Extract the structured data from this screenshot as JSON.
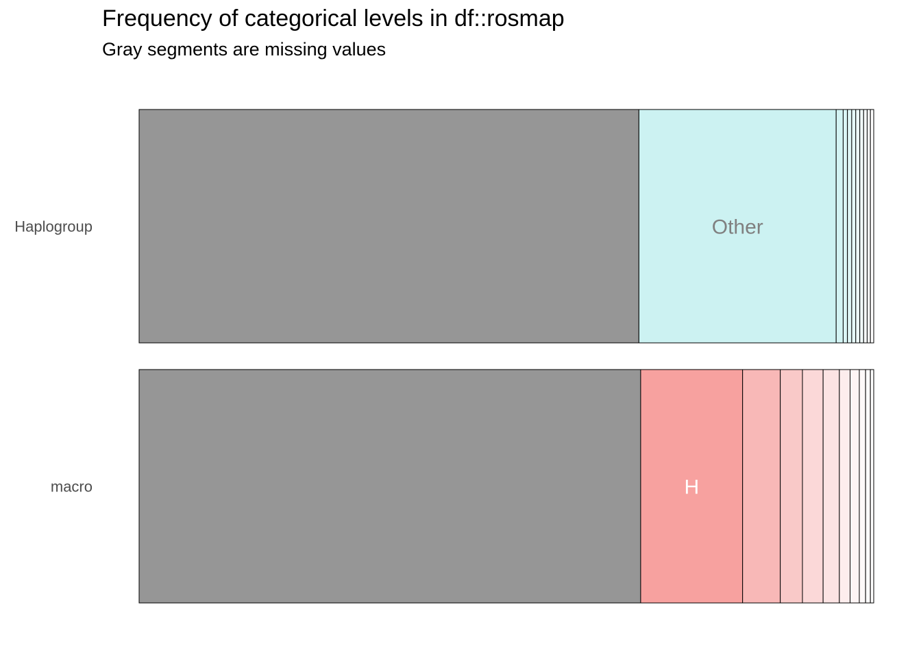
{
  "chart_data": {
    "type": "bar",
    "orientation": "horizontal-stacked-proportion",
    "title": "Frequency of categorical levels in df::rosmap",
    "subtitle": "Gray segments are missing values",
    "xlabel": "",
    "ylabel": "",
    "xlim": [
      0,
      1
    ],
    "grid": false,
    "legend": "none",
    "missing_color": "#969696",
    "rows": [
      {
        "name": "Haplogroup",
        "base_color": "#CCF2F2",
        "segments": [
          {
            "level": "",
            "missing": true,
            "proportion": 0.679,
            "label": "",
            "color": "#969696"
          },
          {
            "level": "Other",
            "missing": false,
            "proportion": 0.268,
            "label": "Other",
            "color": "#CCF2F2",
            "label_color": "#808080"
          },
          {
            "level": "",
            "missing": false,
            "proportion": 0.0095,
            "label": "",
            "color": "#D3F4F4"
          },
          {
            "level": "",
            "missing": false,
            "proportion": 0.0058,
            "label": "",
            "color": "#DAF6F6"
          },
          {
            "level": "",
            "missing": false,
            "proportion": 0.0058,
            "label": "",
            "color": "#E0F7F7"
          },
          {
            "level": "",
            "missing": false,
            "proportion": 0.0055,
            "label": "",
            "color": "#E7F9F9"
          },
          {
            "level": "",
            "missing": false,
            "proportion": 0.0055,
            "label": "",
            "color": "#EDFAFA"
          },
          {
            "level": "",
            "missing": false,
            "proportion": 0.0052,
            "label": "",
            "color": "#F2FCFC"
          },
          {
            "level": "",
            "missing": false,
            "proportion": 0.0048,
            "label": "",
            "color": "#F7FDFD"
          },
          {
            "level": "",
            "missing": false,
            "proportion": 0.0044,
            "label": "",
            "color": "#FBFEFE"
          },
          {
            "level": "",
            "missing": false,
            "proportion": 0.0045,
            "label": "",
            "color": "#FFFFFF"
          }
        ]
      },
      {
        "name": "macro",
        "base_color": "#F8A19F",
        "segments": [
          {
            "level": "",
            "missing": true,
            "proportion": 0.679,
            "label": "",
            "color": "#969696"
          },
          {
            "level": "H",
            "missing": false,
            "proportion": 0.138,
            "label": "H",
            "color": "#F7A19F",
            "label_color": "#FFFFFF"
          },
          {
            "level": "",
            "missing": false,
            "proportion": 0.051,
            "label": "",
            "color": "#F8B8B7"
          },
          {
            "level": "",
            "missing": false,
            "proportion": 0.03,
            "label": "",
            "color": "#F9C9C8"
          },
          {
            "level": "",
            "missing": false,
            "proportion": 0.028,
            "label": "",
            "color": "#FBD8D8"
          },
          {
            "level": "",
            "missing": false,
            "proportion": 0.022,
            "label": "",
            "color": "#FCE3E3"
          },
          {
            "level": "",
            "missing": false,
            "proportion": 0.0145,
            "label": "",
            "color": "#FDEDED"
          },
          {
            "level": "",
            "missing": false,
            "proportion": 0.0125,
            "label": "",
            "color": "#FEF4F4"
          },
          {
            "level": "",
            "missing": false,
            "proportion": 0.0085,
            "label": "",
            "color": "#FEF9F9"
          },
          {
            "level": "",
            "missing": false,
            "proportion": 0.0065,
            "label": "",
            "color": "#FFFCFC"
          },
          {
            "level": "",
            "missing": false,
            "proportion": 0.0045,
            "label": "",
            "color": "#FFFFFF"
          }
        ]
      }
    ]
  }
}
